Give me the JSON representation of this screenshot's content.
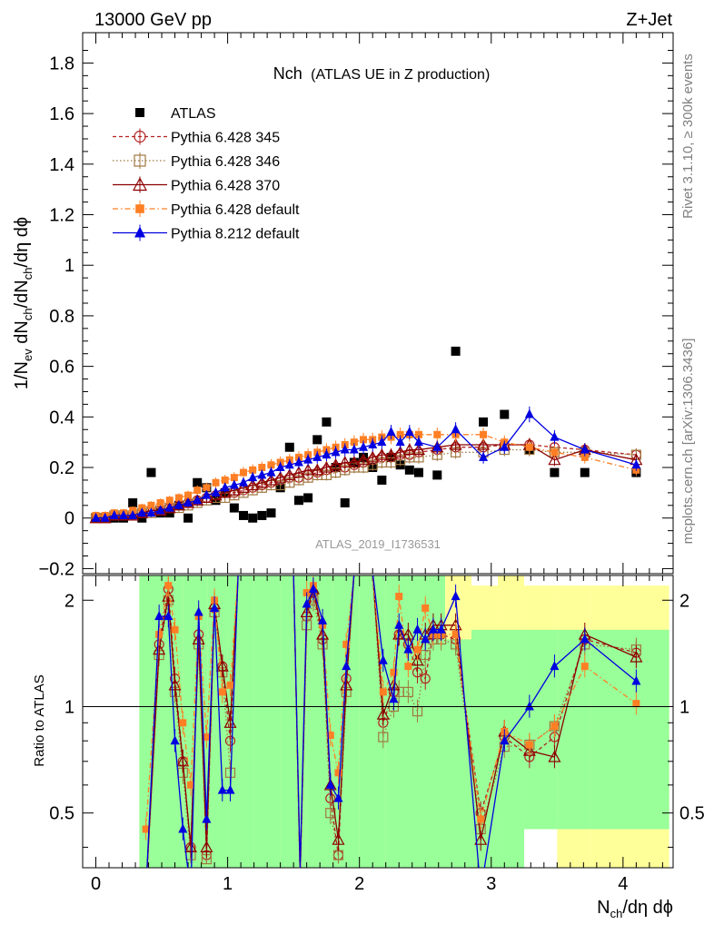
{
  "header": {
    "left": "13000 GeV pp",
    "right": "Z+Jet"
  },
  "side": {
    "rivet": "Rivet 3.1.10, ≥ 300k events",
    "mcplots": "mcplots.cern.ch [arXiv:1306.3436]"
  },
  "colors": {
    "data": "#000000",
    "p345": "#b22222",
    "p346": "#a07840",
    "p370": "#8b0000",
    "p6def": "#ff7f24",
    "p8def": "#0000e0",
    "band_inner": "#99ff99",
    "band_outer": "#ffff99"
  },
  "chart_data": [
    {
      "type": "scatter",
      "title_main": "Nch",
      "title_sub": "(ATLAS UE in Z production)",
      "xlabel": "N",
      "xlabel_sub": "ch",
      "xlabel_tail": "/dη dϕ",
      "ylabel": "1/N_ev dN_ch/dN_ch/dη dϕ",
      "ylim": [
        -0.22,
        1.92
      ],
      "xlim": [
        -0.1,
        4.38
      ],
      "watermark": "ATLAS_2019_I1736531",
      "yticks": [
        "−0.2",
        "0",
        "0.2",
        "0.4",
        "0.6",
        "0.8",
        "1",
        "1.2",
        "1.4",
        "1.6",
        "1.8"
      ],
      "ytick_values": [
        -0.2,
        0,
        0.2,
        0.4,
        0.6,
        0.8,
        1.0,
        1.2,
        1.4,
        1.6,
        1.8
      ],
      "legend": [
        {
          "key": "data",
          "label": "ATLAS"
        },
        {
          "key": "p345",
          "label": "Pythia 6.428 345"
        },
        {
          "key": "p346",
          "label": "Pythia 6.428 346"
        },
        {
          "key": "p370",
          "label": "Pythia 6.428 370"
        },
        {
          "key": "p6def",
          "label": "Pythia 6.428 default"
        },
        {
          "key": "p8def",
          "label": "Pythia 8.212 default"
        }
      ],
      "x": [
        0.0,
        0.07,
        0.14,
        0.21,
        0.28,
        0.35,
        0.42,
        0.49,
        0.56,
        0.63,
        0.7,
        0.77,
        0.84,
        0.91,
        0.98,
        1.05,
        1.12,
        1.19,
        1.26,
        1.33,
        1.4,
        1.47,
        1.54,
        1.61,
        1.68,
        1.75,
        1.82,
        1.89,
        1.96,
        2.03,
        2.1,
        2.17,
        2.24,
        2.31,
        2.38,
        2.45,
        2.59,
        2.73,
        2.94,
        3.1,
        3.29,
        3.48,
        3.71,
        4.1
      ],
      "series": [
        {
          "key": "data",
          "name": "ATLAS",
          "values": [
            0.0,
            0.0,
            0.0,
            0.0,
            0.06,
            0.0,
            0.18,
            0.02,
            0.02,
            0.05,
            0.0,
            0.14,
            0.12,
            0.07,
            0.1,
            0.04,
            0.01,
            0.0,
            0.01,
            0.02,
            0.12,
            0.28,
            0.07,
            0.08,
            0.31,
            0.38,
            0.2,
            0.06,
            0.22,
            0.24,
            0.2,
            0.15,
            0.24,
            0.21,
            0.19,
            0.18,
            0.17,
            0.66,
            0.38,
            0.41,
            0.27,
            0.18,
            0.18,
            0.18
          ]
        },
        {
          "key": "p345",
          "name": "Pythia 6.428 345",
          "values": [
            0.0,
            0.0,
            0.01,
            0.01,
            0.01,
            0.02,
            0.03,
            0.03,
            0.04,
            0.05,
            0.06,
            0.07,
            0.08,
            0.09,
            0.1,
            0.1,
            0.11,
            0.12,
            0.13,
            0.14,
            0.15,
            0.16,
            0.16,
            0.17,
            0.18,
            0.19,
            0.2,
            0.2,
            0.21,
            0.22,
            0.23,
            0.24,
            0.24,
            0.25,
            0.25,
            0.26,
            0.27,
            0.28,
            0.28,
            0.29,
            0.29,
            0.28,
            0.27,
            0.25
          ]
        },
        {
          "key": "p346",
          "name": "Pythia 6.428 346",
          "values": [
            0.0,
            0.0,
            0.01,
            0.01,
            0.01,
            0.02,
            0.02,
            0.03,
            0.04,
            0.04,
            0.05,
            0.06,
            0.07,
            0.08,
            0.08,
            0.09,
            0.1,
            0.11,
            0.12,
            0.13,
            0.13,
            0.14,
            0.15,
            0.16,
            0.17,
            0.17,
            0.18,
            0.19,
            0.2,
            0.2,
            0.21,
            0.22,
            0.22,
            0.23,
            0.24,
            0.24,
            0.25,
            0.26,
            0.26,
            0.27,
            0.27,
            0.26,
            0.26,
            0.25
          ]
        },
        {
          "key": "p370",
          "name": "Pythia 6.428 370",
          "values": [
            0.0,
            0.0,
            0.01,
            0.01,
            0.01,
            0.02,
            0.03,
            0.03,
            0.04,
            0.05,
            0.06,
            0.07,
            0.08,
            0.09,
            0.1,
            0.11,
            0.12,
            0.13,
            0.14,
            0.15,
            0.16,
            0.17,
            0.18,
            0.19,
            0.19,
            0.2,
            0.21,
            0.22,
            0.22,
            0.23,
            0.24,
            0.25,
            0.25,
            0.26,
            0.27,
            0.27,
            0.28,
            0.29,
            0.29,
            0.29,
            0.29,
            0.23,
            0.27,
            0.23
          ]
        },
        {
          "key": "p6def",
          "name": "Pythia 6.428 default",
          "values": [
            0.01,
            0.01,
            0.02,
            0.02,
            0.03,
            0.04,
            0.05,
            0.06,
            0.07,
            0.08,
            0.09,
            0.11,
            0.12,
            0.14,
            0.15,
            0.16,
            0.18,
            0.19,
            0.2,
            0.21,
            0.22,
            0.23,
            0.24,
            0.25,
            0.26,
            0.27,
            0.28,
            0.29,
            0.3,
            0.31,
            0.31,
            0.32,
            0.32,
            0.33,
            0.33,
            0.33,
            0.33,
            0.33,
            0.33,
            0.3,
            0.28,
            0.26,
            0.24,
            0.19
          ]
        },
        {
          "key": "p8def",
          "name": "Pythia 8.212 default",
          "values": [
            0.0,
            0.0,
            0.01,
            0.01,
            0.01,
            0.02,
            0.02,
            0.03,
            0.04,
            0.05,
            0.06,
            0.07,
            0.09,
            0.1,
            0.12,
            0.13,
            0.14,
            0.16,
            0.17,
            0.18,
            0.2,
            0.21,
            0.22,
            0.23,
            0.24,
            0.25,
            0.26,
            0.27,
            0.27,
            0.28,
            0.29,
            0.3,
            0.34,
            0.3,
            0.34,
            0.3,
            0.28,
            0.35,
            0.24,
            0.28,
            0.41,
            0.32,
            0.27,
            0.21
          ]
        }
      ]
    },
    {
      "type": "line",
      "ylabel": "Ratio to ATLAS",
      "ylim": [
        0.35,
        2.35
      ],
      "xlim": [
        -0.1,
        4.38
      ],
      "reference_line": 1,
      "yticks_left": [
        "0.5",
        "1",
        "2"
      ],
      "yticks_right": [
        "0.5",
        "1",
        "2"
      ],
      "ytick_values": [
        0.5,
        1,
        2
      ],
      "xticks": [
        "0",
        "1",
        "2",
        "3",
        "4"
      ],
      "xtick_values": [
        0,
        1,
        2,
        3,
        4
      ],
      "band_edges": [
        0.33,
        0.5,
        0.66,
        0.85,
        1.0,
        1.2,
        1.4,
        1.6,
        1.8,
        2.0,
        2.2,
        2.45,
        2.65,
        2.85,
        3.05,
        3.25,
        3.5,
        3.75,
        4.35
      ],
      "band_inner_lo": [
        0.35,
        0.35,
        0.35,
        0.35,
        0.35,
        0.35,
        0.35,
        0.35,
        0.35,
        0.35,
        0.35,
        0.35,
        0.35,
        0.35,
        0.35,
        0.45,
        0.45,
        0.45
      ],
      "band_inner_hi": [
        2.35,
        2.35,
        2.35,
        2.35,
        2.35,
        2.35,
        2.35,
        2.35,
        2.35,
        2.35,
        2.35,
        2.35,
        1.55,
        1.65,
        1.65,
        1.65,
        1.65,
        1.65
      ],
      "band_outer_lo": [
        0.35,
        0.35,
        0.35,
        0.35,
        0.35,
        0.35,
        0.35,
        0.35,
        0.35,
        0.35,
        0.35,
        0.5,
        0.35,
        0.35,
        0.5,
        0.5,
        0.35,
        0.35
      ],
      "band_outer_hi": [
        2.35,
        2.35,
        2.35,
        2.35,
        2.35,
        2.35,
        2.35,
        2.35,
        2.35,
        2.35,
        2.35,
        2.35,
        2.35,
        2.2,
        2.35,
        2.2,
        2.2,
        2.2
      ],
      "x": [
        0.38,
        0.48,
        0.55,
        0.6,
        0.66,
        0.72,
        0.78,
        0.84,
        0.9,
        0.96,
        1.02,
        1.08,
        1.14,
        1.5,
        1.55,
        1.6,
        1.65,
        1.72,
        1.78,
        1.84,
        1.9,
        1.96,
        2.02,
        2.1,
        2.18,
        2.26,
        2.3,
        2.37,
        2.44,
        2.5,
        2.56,
        2.62,
        2.73,
        2.92,
        3.1,
        3.29,
        3.48,
        3.71,
        4.1
      ],
      "series": [
        {
          "key": "p345",
          "name": "Pythia 6.428 345",
          "values": [
            0.3,
            1.5,
            2.15,
            1.2,
            0.7,
            0.4,
            1.6,
            0.38,
            1.9,
            1.3,
            0.8,
            2.4,
            2.4,
            2.4,
            0.33,
            1.8,
            2.1,
            1.55,
            0.55,
            0.38,
            1.2,
            2.4,
            2.4,
            2.4,
            0.9,
            1.1,
            1.6,
            1.5,
            1.25,
            1.2,
            1.6,
            1.6,
            1.55,
            0.5,
            0.82,
            0.72,
            0.82,
            1.55,
            1.42
          ]
        },
        {
          "key": "p346",
          "name": "Pythia 6.428 346",
          "values": [
            0.3,
            1.4,
            2.0,
            1.1,
            0.65,
            0.38,
            1.5,
            0.37,
            1.85,
            1.25,
            0.65,
            2.4,
            2.4,
            2.4,
            0.33,
            1.7,
            2.0,
            1.5,
            0.5,
            0.38,
            1.1,
            2.4,
            2.4,
            2.4,
            0.82,
            1.0,
            1.1,
            1.1,
            0.97,
            1.4,
            1.55,
            1.55,
            1.5,
            0.45,
            0.77,
            0.78,
            0.88,
            1.5,
            1.45
          ]
        },
        {
          "key": "p370",
          "name": "Pythia 6.428 370",
          "values": [
            0.3,
            1.45,
            2.05,
            1.15,
            0.7,
            0.4,
            1.55,
            0.4,
            1.95,
            1.3,
            0.9,
            2.4,
            2.4,
            2.4,
            0.33,
            1.85,
            2.15,
            1.6,
            0.6,
            0.42,
            1.15,
            2.4,
            2.4,
            2.4,
            0.95,
            1.15,
            1.6,
            1.6,
            1.35,
            1.6,
            1.7,
            1.7,
            1.7,
            0.42,
            0.85,
            0.75,
            0.72,
            1.6,
            1.38
          ]
        },
        {
          "key": "p6def",
          "name": "Pythia 6.428 default",
          "values": [
            0.45,
            1.6,
            2.2,
            1.65,
            0.9,
            0.6,
            1.8,
            0.82,
            2.0,
            1.1,
            1.15,
            2.4,
            2.4,
            2.4,
            0.33,
            2.1,
            2.2,
            1.7,
            0.83,
            0.65,
            1.5,
            2.4,
            2.4,
            2.4,
            1.1,
            1.25,
            2.05,
            1.3,
            1.45,
            1.9,
            1.6,
            1.6,
            1.6,
            0.48,
            0.85,
            0.78,
            0.88,
            1.3,
            1.02
          ]
        },
        {
          "key": "p8def",
          "name": "Pythia 8.212 default",
          "values": [
            0.3,
            1.8,
            1.8,
            0.8,
            0.45,
            0.3,
            1.85,
            0.48,
            1.9,
            0.58,
            0.58,
            2.4,
            2.4,
            2.4,
            0.35,
            1.95,
            2.15,
            1.75,
            0.6,
            0.55,
            1.3,
            2.4,
            2.4,
            2.4,
            1.35,
            1.05,
            1.7,
            1.45,
            1.65,
            1.55,
            1.65,
            1.65,
            2.05,
            0.3,
            0.8,
            1.0,
            1.3,
            1.55,
            1.18
          ]
        }
      ]
    }
  ]
}
